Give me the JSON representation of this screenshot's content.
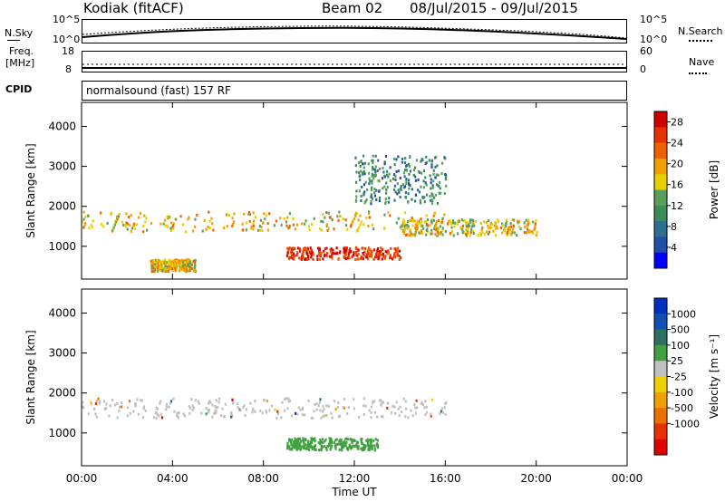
{
  "header": {
    "station": "Kodiak (fitACF)",
    "beam": "Beam 02",
    "date_range": "08/Jul/2015 - 09/Jul/2015"
  },
  "noise_panel": {
    "left_label": "N.Sky",
    "right_label": "N.Search",
    "left_ticks": [
      "10^5",
      "10^0"
    ],
    "right_ticks": [
      "10^5",
      "10^0"
    ]
  },
  "freq_panel": {
    "left_label_1": "Freq.",
    "left_label_2": "[MHz]",
    "right_label": "Nave",
    "left_ticks": [
      "18",
      "8"
    ],
    "right_ticks": [
      "60",
      "0"
    ]
  },
  "cpid": {
    "label": "CPID",
    "value": "normalsound (fast) 157 RF"
  },
  "colors": {
    "power": [
      "#0000ff",
      "#1f4fa8",
      "#2e6e8e",
      "#3c8c5a",
      "#5aa05a",
      "#e8d000",
      "#f2a000",
      "#ee6000",
      "#e83000",
      "#d00000"
    ],
    "velocity": [
      "#0030c0",
      "#1050b0",
      "#2e7060",
      "#40a040",
      "#c0c0c0",
      "#f0d000",
      "#f0a000",
      "#ee7000",
      "#e83000",
      "#e00000"
    ]
  },
  "chart_data": [
    {
      "type": "heatmap",
      "title": "Power",
      "xlabel": "",
      "ylabel": "Slant Range [km]",
      "x_ticks": [
        "00:00",
        "04:00",
        "08:00",
        "12:00",
        "16:00",
        "20:00",
        "00:00"
      ],
      "xlim": [
        0,
        24
      ],
      "ylim": [
        180,
        4600
      ],
      "y_ticks": [
        1000,
        2000,
        3000,
        4000
      ],
      "colorbar": {
        "label": "Power [dB]",
        "ticks": [
          "4",
          "8",
          "12",
          "16",
          "20",
          "24",
          "28"
        ],
        "range": [
          0,
          30
        ]
      },
      "regions": [
        {
          "feature": "main F-region band",
          "x": [
            0,
            16
          ],
          "range_km": [
            1400,
            1900
          ],
          "level_db": 18
        },
        {
          "feature": "late band",
          "x": [
            14,
            20
          ],
          "range_km": [
            1300,
            1700
          ],
          "level_db": 17
        },
        {
          "feature": "strong near-range echo",
          "x": [
            9,
            14
          ],
          "range_km": [
            700,
            1000
          ],
          "level_db": 26
        },
        {
          "feature": "early near-range patch",
          "x": [
            3,
            5
          ],
          "range_km": [
            400,
            700
          ],
          "level_db": 18
        },
        {
          "feature": "upper arc",
          "x": [
            12,
            16
          ],
          "range_km": [
            2100,
            3300
          ],
          "level_db": 10
        }
      ]
    },
    {
      "type": "heatmap",
      "title": "Velocity",
      "xlabel": "Time UT",
      "ylabel": "Slant Range [km]",
      "x_ticks": [
        "00:00",
        "04:00",
        "08:00",
        "12:00",
        "16:00",
        "20:00",
        "00:00"
      ],
      "xlim": [
        0,
        24
      ],
      "ylim": [
        180,
        4600
      ],
      "y_ticks": [
        1000,
        2000,
        3000,
        4000
      ],
      "colorbar": {
        "label": "Velocity [m s⁻¹]",
        "ticks": [
          "1000",
          "500",
          "100",
          "25",
          "-25",
          "-100",
          "-500",
          "-1000"
        ]
      },
      "regions": [
        {
          "feature": "main band",
          "x": [
            0,
            16
          ],
          "range_km": [
            1400,
            1900
          ],
          "velocity": 0
        },
        {
          "feature": "near-range green echo",
          "x": [
            9,
            13
          ],
          "range_km": [
            600,
            900
          ],
          "velocity": 80
        }
      ]
    }
  ]
}
